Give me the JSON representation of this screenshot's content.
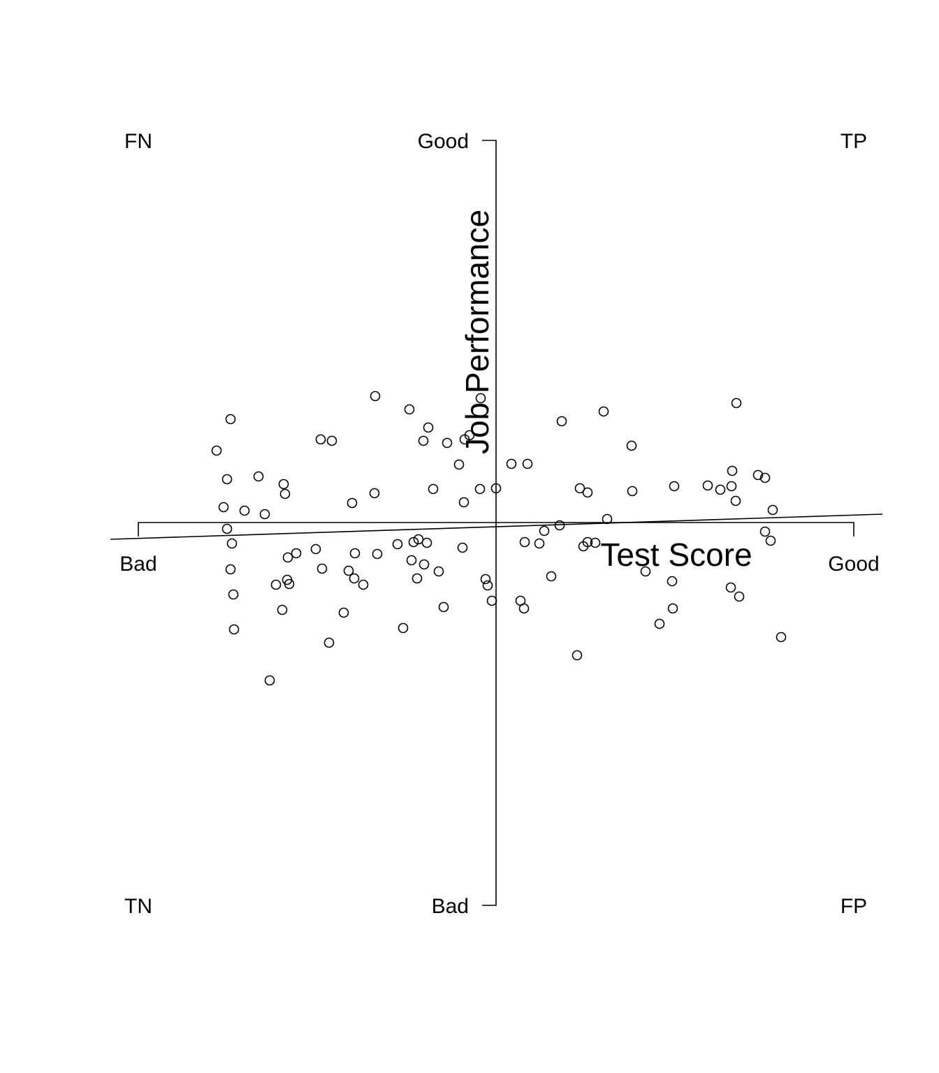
{
  "chart_data": {
    "type": "scatter",
    "xlabel": "Test Score",
    "ylabel": "Job Performance",
    "xlim": [
      -51.2,
      51.2
    ],
    "ylim": [
      -54.8,
      54.7
    ],
    "x_tick_labels": [
      "Bad",
      "Good"
    ],
    "y_tick_labels": [
      "Bad",
      "Good"
    ],
    "quadrant_labels": {
      "top_left": "FN",
      "top_right": "TP",
      "bottom_left": "TN",
      "bottom_right": "FP"
    },
    "regression_line": {
      "x": [
        -55.2,
        55.3
      ],
      "y": [
        -2.4,
        1.2
      ]
    },
    "grid": false,
    "points": [
      [
        -38,
        14.8
      ],
      [
        -40,
        10.3
      ],
      [
        -38.5,
        6.2
      ],
      [
        -34,
        6.6
      ],
      [
        -30.4,
        5.5
      ],
      [
        -30.2,
        4.1
      ],
      [
        -39,
        2.2
      ],
      [
        -36,
        1.7
      ],
      [
        -33.1,
        1.2
      ],
      [
        -38.5,
        -0.9
      ],
      [
        -37.8,
        -3
      ],
      [
        -38,
        -6.7
      ],
      [
        -37.6,
        -10.3
      ],
      [
        -37.5,
        -15.3
      ],
      [
        -32.4,
        -22.6
      ],
      [
        -29.8,
        -5
      ],
      [
        -28.6,
        -4.4
      ],
      [
        -31.5,
        -8.9
      ],
      [
        -29.9,
        -8.2
      ],
      [
        -29.6,
        -8.8
      ],
      [
        -30.6,
        -12.5
      ],
      [
        -25.8,
        -3.8
      ],
      [
        -24.9,
        -6.6
      ],
      [
        -23.9,
        -17.2
      ],
      [
        -21.8,
        -12.9
      ],
      [
        -21.1,
        -6.9
      ],
      [
        -20.3,
        -8
      ],
      [
        -20.2,
        -4.4
      ],
      [
        -19,
        -8.9
      ],
      [
        -17,
        -4.5
      ],
      [
        -25.1,
        11.9
      ],
      [
        -23.5,
        11.7
      ],
      [
        -20.6,
        2.8
      ],
      [
        -17.4,
        4.2
      ],
      [
        -17.3,
        18.1
      ],
      [
        -12.4,
        16.2
      ],
      [
        -9.7,
        13.6
      ],
      [
        -10.4,
        11.7
      ],
      [
        -7,
        11.4
      ],
      [
        -5.3,
        8.3
      ],
      [
        -4.5,
        11.9
      ],
      [
        -3.8,
        12.5
      ],
      [
        -2.2,
        17.8
      ],
      [
        -4.6,
        2.9
      ],
      [
        -2.3,
        4.8
      ],
      [
        0,
        4.9
      ],
      [
        -9,
        4.8
      ],
      [
        -14.1,
        -3.1
      ],
      [
        -11.8,
        -2.8
      ],
      [
        -11.1,
        -2.4
      ],
      [
        -9.9,
        -2.9
      ],
      [
        -12.1,
        -5.4
      ],
      [
        -10.3,
        -6
      ],
      [
        -11.3,
        -8
      ],
      [
        -8.2,
        -7
      ],
      [
        -4.8,
        -3.6
      ],
      [
        -13.3,
        -15.1
      ],
      [
        -7.5,
        -12.1
      ],
      [
        -1.5,
        -8.1
      ],
      [
        -1.2,
        -9
      ],
      [
        -0.6,
        -11.2
      ],
      [
        2.2,
        8.4
      ],
      [
        4.5,
        8.4
      ],
      [
        4.1,
        -2.8
      ],
      [
        6.2,
        -3
      ],
      [
        6.9,
        -1.2
      ],
      [
        9.1,
        -0.4
      ],
      [
        7.9,
        -7.7
      ],
      [
        3.5,
        -11.2
      ],
      [
        4,
        -12.3
      ],
      [
        9.4,
        14.5
      ],
      [
        15.4,
        15.9
      ],
      [
        19.4,
        11
      ],
      [
        19.5,
        4.5
      ],
      [
        12,
        4.9
      ],
      [
        13.1,
        4.3
      ],
      [
        15.9,
        0.5
      ],
      [
        12.5,
        -3.4
      ],
      [
        13.1,
        -2.8
      ],
      [
        14.2,
        -2.9
      ],
      [
        11.6,
        -19
      ],
      [
        21.4,
        -7
      ],
      [
        25.2,
        -8.4
      ],
      [
        25.3,
        -12.3
      ],
      [
        23.4,
        -14.5
      ],
      [
        25.5,
        5.2
      ],
      [
        30.3,
        5.3
      ],
      [
        32.1,
        4.7
      ],
      [
        33.7,
        5.2
      ],
      [
        33.8,
        7.4
      ],
      [
        34.4,
        17.1
      ],
      [
        34.3,
        3.1
      ],
      [
        37.5,
        6.8
      ],
      [
        38.5,
        6.4
      ],
      [
        39.6,
        1.8
      ],
      [
        38.5,
        -1.3
      ],
      [
        39.3,
        -2.6
      ],
      [
        33.6,
        -9.3
      ],
      [
        34.8,
        -10.6
      ],
      [
        40.8,
        -16.4
      ]
    ]
  }
}
